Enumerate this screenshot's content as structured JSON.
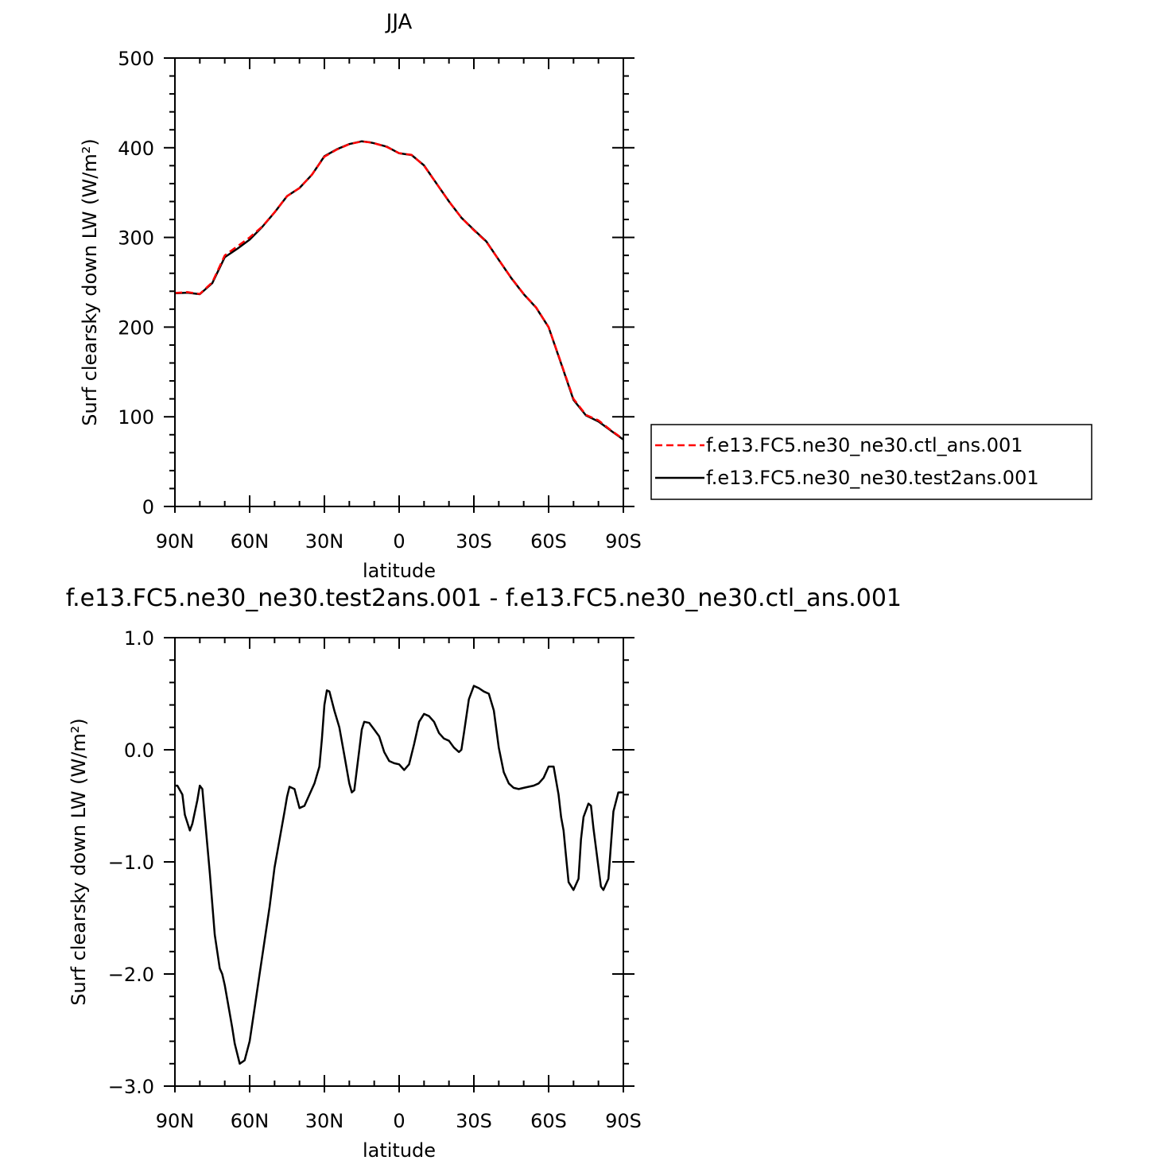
{
  "chart_data": [
    {
      "type": "line",
      "title": "JJA",
      "xlabel": "latitude",
      "ylabel": "Surf clearsky down LW (W/m²)",
      "xlim": [
        90,
        -90
      ],
      "ylim": [
        0,
        500
      ],
      "x_ticks": [
        {
          "value": 90,
          "label": "90N"
        },
        {
          "value": 60,
          "label": "60N"
        },
        {
          "value": 30,
          "label": "30N"
        },
        {
          "value": 0,
          "label": "0"
        },
        {
          "value": -30,
          "label": "30S"
        },
        {
          "value": -60,
          "label": "60S"
        },
        {
          "value": -90,
          "label": "90S"
        }
      ],
      "y_ticks": [
        {
          "value": 0,
          "label": "0"
        },
        {
          "value": 100,
          "label": "100"
        },
        {
          "value": 200,
          "label": "200"
        },
        {
          "value": 300,
          "label": "300"
        },
        {
          "value": 400,
          "label": "400"
        },
        {
          "value": 500,
          "label": "500"
        }
      ],
      "legend_position": "right",
      "series": [
        {
          "name": "f.e13.FC5.ne30_ne30.ctl_ans.001",
          "color": "#ff0000",
          "dash": "dashed",
          "x": [
            90,
            85,
            80,
            75,
            70,
            65,
            60,
            55,
            50,
            45,
            40,
            35,
            30,
            25,
            20,
            15,
            12,
            10,
            5,
            0,
            -5,
            -10,
            -15,
            -20,
            -25,
            -30,
            -35,
            -40,
            -45,
            -50,
            -55,
            -60,
            -65,
            -70,
            -75,
            -80,
            -85,
            -90
          ],
          "values": [
            238,
            239,
            237,
            250,
            280,
            290,
            300,
            312,
            328,
            346,
            355,
            370,
            390,
            398,
            404,
            407,
            406,
            405,
            401,
            394,
            392,
            380,
            360,
            340,
            322,
            308,
            295,
            275,
            255,
            237,
            222,
            200,
            160,
            120,
            102,
            96,
            85,
            75
          ]
        },
        {
          "name": "f.e13.FC5.ne30_ne30.test2ans.001",
          "color": "#000000",
          "dash": "solid",
          "x": [
            90,
            85,
            80,
            75,
            70,
            65,
            60,
            55,
            50,
            45,
            40,
            35,
            30,
            25,
            20,
            15,
            12,
            10,
            5,
            0,
            -5,
            -10,
            -15,
            -20,
            -25,
            -30,
            -35,
            -40,
            -45,
            -50,
            -55,
            -60,
            -65,
            -70,
            -75,
            -80,
            -85,
            -90
          ],
          "values": [
            237.7,
            238.4,
            236.7,
            249.0,
            278.0,
            287.2,
            297.5,
            311.6,
            327.8,
            346.0,
            355.1,
            369.9,
            390.5,
            398.3,
            404.1,
            407.2,
            406.1,
            405.0,
            401.2,
            393.8,
            391.8,
            380.3,
            360.1,
            340.1,
            322.0,
            308.5,
            295.5,
            275.0,
            254.7,
            236.7,
            221.7,
            199.8,
            159.4,
            118.8,
            101.5,
            94.8,
            84.6,
            74.6
          ]
        }
      ]
    },
    {
      "type": "line",
      "title": "f.e13.FC5.ne30_ne30.test2ans.001 - f.e13.FC5.ne30_ne30.ctl_ans.001",
      "xlabel": "latitude",
      "ylabel": "Surf clearsky down LW (W/m²)",
      "xlim": [
        90,
        -90
      ],
      "ylim": [
        -3.0,
        1.0
      ],
      "x_ticks": [
        {
          "value": 90,
          "label": "90N"
        },
        {
          "value": 60,
          "label": "60N"
        },
        {
          "value": 30,
          "label": "30N"
        },
        {
          "value": 0,
          "label": "0"
        },
        {
          "value": -30,
          "label": "30S"
        },
        {
          "value": -60,
          "label": "60S"
        },
        {
          "value": -90,
          "label": "90S"
        }
      ],
      "y_ticks": [
        {
          "value": -3.0,
          "label": "−3.0"
        },
        {
          "value": -2.0,
          "label": "−2.0"
        },
        {
          "value": -1.0,
          "label": "−1.0"
        },
        {
          "value": 0.0,
          "label": "0.0"
        },
        {
          "value": 1.0,
          "label": "1.0"
        }
      ],
      "series": [
        {
          "color": "#000000",
          "dash": "solid",
          "x": [
            90,
            89,
            87,
            86,
            84,
            83,
            81,
            80,
            79,
            78,
            76,
            74,
            72,
            71,
            70,
            68,
            67,
            66,
            64,
            62,
            60,
            58,
            56,
            54,
            52,
            50,
            48,
            46,
            45,
            44,
            42,
            40,
            38,
            36,
            34,
            32,
            31,
            30,
            29,
            28,
            26,
            24,
            22,
            20,
            19,
            18,
            16,
            15,
            14,
            12,
            10,
            8,
            6,
            4,
            2,
            0,
            -2,
            -4,
            -6,
            -8,
            -10,
            -12,
            -14,
            -16,
            -18,
            -20,
            -22,
            -24,
            -25,
            -26,
            -28,
            -30,
            -32,
            -34,
            -36,
            -38,
            -40,
            -42,
            -44,
            -46,
            -48,
            -50,
            -52,
            -54,
            -56,
            -58,
            -59,
            -60,
            -62,
            -64,
            -65,
            -66,
            -67,
            -68,
            -70,
            -72,
            -73,
            -74,
            -76,
            -77,
            -78,
            -80,
            -81,
            -82,
            -84,
            -86,
            -88,
            -90
          ],
          "values": [
            -0.32,
            -0.32,
            -0.4,
            -0.58,
            -0.72,
            -0.66,
            -0.45,
            -0.32,
            -0.35,
            -0.6,
            -1.1,
            -1.65,
            -1.95,
            -2.0,
            -2.1,
            -2.35,
            -2.48,
            -2.62,
            -2.8,
            -2.77,
            -2.6,
            -2.3,
            -2.0,
            -1.7,
            -1.4,
            -1.05,
            -0.8,
            -0.55,
            -0.42,
            -0.33,
            -0.35,
            -0.52,
            -0.5,
            -0.4,
            -0.3,
            -0.15,
            0.1,
            0.4,
            0.53,
            0.52,
            0.35,
            0.2,
            -0.05,
            -0.3,
            -0.38,
            -0.36,
            0.0,
            0.18,
            0.25,
            0.24,
            0.18,
            0.12,
            -0.02,
            -0.1,
            -0.12,
            -0.13,
            -0.18,
            -0.13,
            0.05,
            0.25,
            0.32,
            0.3,
            0.25,
            0.15,
            0.1,
            0.08,
            0.02,
            -0.02,
            0.0,
            0.15,
            0.45,
            0.57,
            0.55,
            0.52,
            0.5,
            0.35,
            0.02,
            -0.2,
            -0.3,
            -0.34,
            -0.35,
            -0.34,
            -0.33,
            -0.32,
            -0.3,
            -0.25,
            -0.2,
            -0.15,
            -0.15,
            -0.4,
            -0.6,
            -0.72,
            -0.95,
            -1.18,
            -1.25,
            -1.15,
            -0.8,
            -0.6,
            -0.48,
            -0.5,
            -0.7,
            -1.05,
            -1.22,
            -1.25,
            -1.15,
            -0.55,
            -0.38,
            -0.38
          ]
        }
      ]
    }
  ]
}
